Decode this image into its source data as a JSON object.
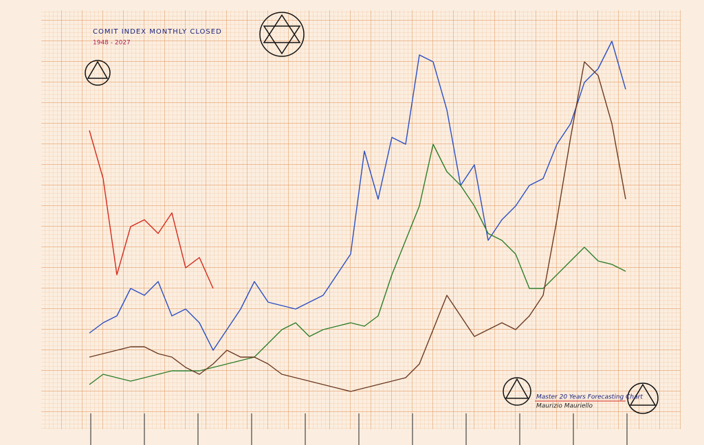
{
  "chart_data": {
    "type": "line",
    "title": "COMIT INDEX MONTHLY CLOSED",
    "subtitle": "1948 - 2027",
    "annotations": [
      "Master 20 Years Forecasting Chart",
      "Maurizio Mauriello"
    ],
    "categories": [
      null,
      null,
      null,
      null,
      null,
      null,
      null,
      null,
      null,
      null,
      null,
      null,
      null,
      null,
      null,
      null,
      null,
      null,
      null,
      null,
      null,
      null,
      null,
      null,
      null,
      null,
      null,
      null,
      null,
      null,
      null,
      null,
      null,
      null,
      null,
      null,
      null,
      null,
      null,
      null
    ],
    "ylim": [
      0,
      600
    ],
    "series": [
      {
        "color": "#2a4fc4",
        "values": [
          135,
          150,
          160,
          200,
          190,
          210,
          160,
          170,
          150,
          110,
          140,
          170,
          210,
          180,
          175,
          170,
          180,
          190,
          220,
          250,
          400,
          330,
          420,
          410,
          540,
          530,
          460,
          350,
          380,
          270,
          300,
          320,
          350,
          360,
          410,
          440,
          500,
          520,
          560,
          490
        ]
      },
      {
        "color": "#d42a1e",
        "values": [
          430,
          360,
          220,
          290,
          300,
          280,
          310,
          230,
          245,
          200,
          null,
          null,
          null,
          null,
          null,
          null,
          null,
          null,
          null,
          null,
          null,
          null,
          null,
          null,
          null,
          null,
          null,
          null,
          null,
          null,
          null,
          null,
          null,
          null,
          null,
          null,
          null,
          null,
          null,
          null
        ]
      },
      {
        "color": "#2e7d2a",
        "values": [
          60,
          75,
          70,
          65,
          70,
          75,
          80,
          80,
          80,
          85,
          90,
          95,
          100,
          120,
          140,
          150,
          130,
          140,
          145,
          150,
          145,
          160,
          220,
          270,
          320,
          410,
          370,
          350,
          320,
          280,
          270,
          250,
          200,
          200,
          220,
          240,
          260,
          240,
          235,
          225
        ]
      },
      {
        "color": "#6b3a22",
        "values": [
          100,
          105,
          110,
          115,
          115,
          105,
          100,
          85,
          75,
          90,
          110,
          100,
          100,
          90,
          75,
          70,
          65,
          60,
          55,
          50,
          55,
          60,
          65,
          70,
          90,
          140,
          190,
          160,
          130,
          140,
          150,
          140,
          160,
          190,
          300,
          420,
          530,
          510,
          440,
          330
        ]
      }
    ]
  }
}
